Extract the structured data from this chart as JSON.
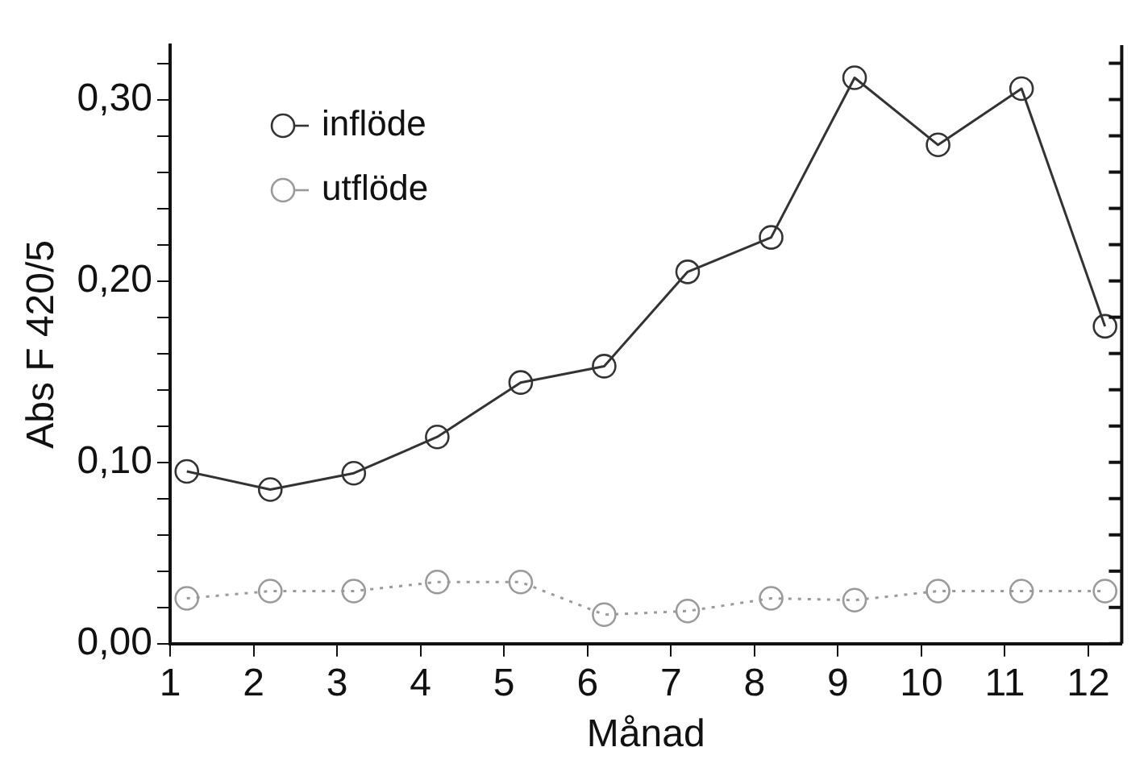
{
  "chart_data": {
    "type": "line",
    "xlabel": "Månad",
    "ylabel": "Abs F 420/5",
    "xlim": [
      1,
      12.4
    ],
    "xticks": [
      1,
      2,
      3,
      4,
      5,
      6,
      7,
      8,
      9,
      10,
      11,
      12
    ],
    "ylim": [
      0,
      0.33
    ],
    "yticks": [
      {
        "value": 0,
        "label": "0,00"
      },
      {
        "value": 0.02,
        "label": null
      },
      {
        "value": 0.04,
        "label": null
      },
      {
        "value": 0.06,
        "label": null
      },
      {
        "value": 0.08,
        "label": null
      },
      {
        "value": 0.1,
        "label": "0,10"
      },
      {
        "value": 0.12,
        "label": null
      },
      {
        "value": 0.14,
        "label": null
      },
      {
        "value": 0.16,
        "label": null
      },
      {
        "value": 0.18,
        "label": null
      },
      {
        "value": 0.2,
        "label": "0,20"
      },
      {
        "value": 0.22,
        "label": null
      },
      {
        "value": 0.24,
        "label": null
      },
      {
        "value": 0.26,
        "label": null
      },
      {
        "value": 0.28,
        "label": null
      },
      {
        "value": 0.3,
        "label": "0,30"
      },
      {
        "value": 0.32,
        "label": null
      }
    ],
    "x": [
      1.2,
      2.2,
      3.2,
      4.2,
      5.2,
      6.2,
      7.2,
      8.2,
      9.2,
      10.2,
      11.2,
      12.2
    ],
    "marker": "circle",
    "grid": false,
    "legend": "top left",
    "series": [
      {
        "name": "inflöde",
        "color": "#333333",
        "line_style": "solid",
        "values": [
          0.095,
          0.085,
          0.094,
          0.114,
          0.144,
          0.153,
          0.205,
          0.224,
          0.312,
          0.275,
          0.306,
          0.175
        ]
      },
      {
        "name": "utflöde",
        "color": "#9a9a9a",
        "line_style": "dotted",
        "values": [
          0.025,
          0.029,
          0.029,
          0.034,
          0.034,
          0.016,
          0.018,
          0.025,
          0.024,
          0.029,
          0.029,
          0.029
        ]
      }
    ]
  }
}
